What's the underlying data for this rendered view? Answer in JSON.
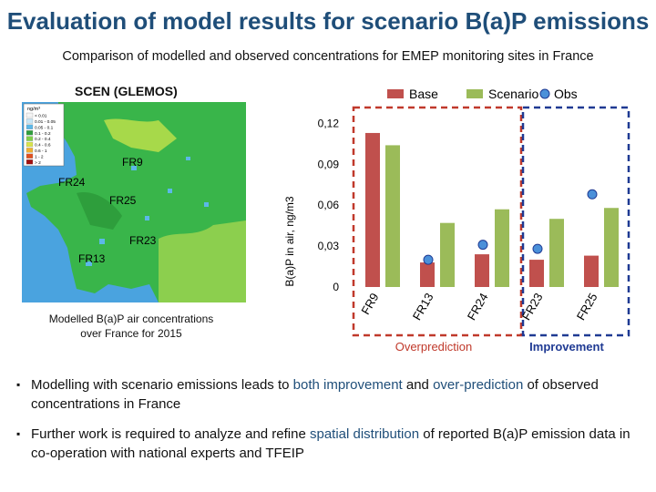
{
  "slide": {
    "title": "Evaluation of model results for scenario B(a)P emissions",
    "subtitle": "Comparison of modelled and observed concentrations for EMEP monitoring sites in France"
  },
  "map": {
    "title": "SCEN (GLEMOS)",
    "caption_line1": "Modelled B(a)P air concentrations",
    "caption_line2": "over France for 2015",
    "legend_unit": "ng/m³",
    "legend": [
      {
        "label": "< 0.01",
        "color": "#f4f4f4"
      },
      {
        "label": "0.01 - 0.05",
        "color": "#c6e6f7"
      },
      {
        "label": "0.05 - 0.1",
        "color": "#5cb8e8"
      },
      {
        "label": "0.1 - 0.2",
        "color": "#2e9e3c"
      },
      {
        "label": "0.2 - 0.4",
        "color": "#7fd04a"
      },
      {
        "label": "0.4 - 0.6",
        "color": "#d8e44a"
      },
      {
        "label": "0.6 - 1",
        "color": "#f0b030"
      },
      {
        "label": "1 - 2",
        "color": "#e05020"
      },
      {
        "label": "> 2",
        "color": "#a01010"
      }
    ],
    "site_labels": [
      "FR9",
      "FR24",
      "FR25",
      "FR23",
      "FR13"
    ]
  },
  "chart_data": {
    "type": "bar",
    "categories": [
      "FR9",
      "FR13",
      "FR24",
      "FR23",
      "FR25"
    ],
    "series": [
      {
        "name": "Base",
        "values": [
          0.113,
          0.018,
          0.024,
          0.02,
          0.023
        ],
        "color": "#c0504d"
      },
      {
        "name": "Scenario",
        "values": [
          0.104,
          0.047,
          0.057,
          0.05,
          0.058
        ],
        "color": "#9bbb59"
      }
    ],
    "observed": {
      "name": "Obs",
      "values": [
        null,
        0.02,
        0.031,
        0.028,
        0.068
      ],
      "color": "#4a90d9"
    },
    "ylabel": "B(a)P in air, ng/m3",
    "yticks": [
      "0",
      "0,03",
      "0,06",
      "0,09",
      "0,12"
    ],
    "ytick_values": [
      0,
      0.03,
      0.06,
      0.09,
      0.12
    ],
    "ylim": [
      0,
      0.125
    ],
    "legend": [
      "Base",
      "Scenario",
      "Obs"
    ],
    "group_labels": {
      "overprediction": {
        "text": "Overprediction",
        "color": "#c0392b"
      },
      "improvement": {
        "text": "Improvement",
        "color": "#1f3a93"
      }
    }
  },
  "bullets": {
    "b1_part1": "Modelling with scenario emissions leads to ",
    "b1_hl1": "both improvement",
    "b1_part2": " and ",
    "b1_hl2": "over-prediction",
    "b1_part3": " of observed concentrations in France",
    "b2_part1": "Further work is required to analyze and refine ",
    "b2_hl1": "spatial distribution",
    "b2_part2": " of reported B(a)P emission data in co-operation with national experts and TFEIP"
  },
  "colors": {
    "title": "#1f4e79",
    "highlight": "#1f4e79",
    "dash_red": "#c0392b",
    "dash_blue": "#1f3a93"
  }
}
